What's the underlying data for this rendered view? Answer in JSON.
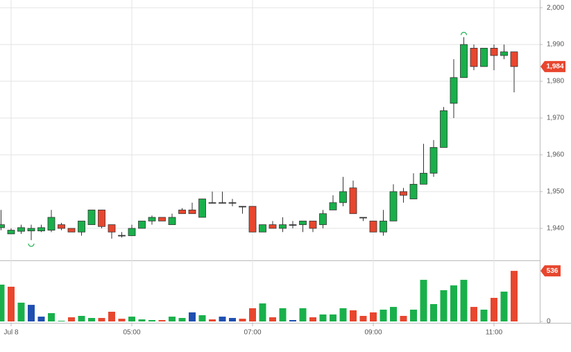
{
  "chart_data": {
    "type": "candlestick",
    "categories": [
      null,
      "Jul 8",
      null,
      null,
      null,
      null,
      null,
      null,
      null,
      null,
      null,
      null,
      null,
      "05:00",
      null,
      null,
      null,
      null,
      null,
      null,
      null,
      null,
      null,
      null,
      null,
      "07:00",
      null,
      null,
      null,
      null,
      null,
      null,
      null,
      null,
      null,
      null,
      null,
      "09:00",
      null,
      null,
      null,
      null,
      null,
      null,
      null,
      null,
      null,
      null,
      null,
      "11:00",
      null,
      null
    ],
    "open": [
      1940.2,
      1938.5,
      1939.2,
      1939.3,
      1939.3,
      1939.5,
      1941,
      1940,
      1939,
      1941,
      1945,
      1941,
      1938.1,
      1938,
      1940,
      1942,
      1943,
      1941,
      1945,
      1945,
      1943,
      1947,
      1947,
      1947,
      1946,
      1946,
      1939,
      1941,
      1940,
      1941,
      1941,
      1942,
      1941,
      1945,
      1947,
      1951,
      1943,
      1942,
      1939,
      1942,
      1950,
      1948,
      1952,
      1955,
      1962,
      1974,
      1981,
      1989,
      1984,
      1989,
      1987,
      1988
    ],
    "high": [
      1945,
      1940,
      1941,
      1941,
      1941,
      1945,
      1941.5,
      1940,
      1942,
      1945,
      1945,
      1941,
      1939,
      1941,
      1942,
      1943.5,
      1943,
      1944,
      1945.5,
      1947,
      1948,
      1950,
      1950,
      1948,
      1946,
      1946,
      1941,
      1942,
      1943,
      1942,
      1942,
      1942,
      1945,
      1949,
      1954,
      1953,
      1943,
      1942,
      1945,
      1952,
      1951,
      1955,
      1963,
      1964,
      1973,
      1986,
      1992,
      1990,
      1989,
      1990,
      1990,
      1988
    ],
    "low": [
      1939.5,
      1938.5,
      1938.5,
      1936.8,
      1939,
      1939,
      1939.5,
      1939,
      1938,
      1941,
      1940,
      1937.2,
      1937.5,
      1938,
      1940,
      1941,
      1942,
      1941,
      1944,
      1944,
      1943,
      1947,
      1947,
      1946,
      1944,
      1939,
      1939,
      1940,
      1939,
      1940,
      1939,
      1939,
      1940,
      1945,
      1946,
      1944,
      1942,
      1939,
      1938,
      1942,
      1947,
      1948,
      1952,
      1954,
      1962,
      1970,
      1981,
      1983,
      1984,
      1983,
      1986,
      1977
    ],
    "close": [
      1941,
      1939.5,
      1940.2,
      1940,
      1940.2,
      1943,
      1940,
      1939,
      1942,
      1945,
      1940.5,
      1939,
      1938.1,
      1940,
      1942,
      1943,
      1942,
      1943,
      1944,
      1944,
      1948,
      1947,
      1947,
      1947,
      1946,
      1939,
      1941,
      1940,
      1941,
      1941,
      1942,
      1940,
      1944,
      1947,
      1950,
      1944,
      1943,
      1939,
      1942,
      1950,
      1949,
      1952,
      1955,
      1962,
      1972,
      1981,
      1990,
      1984,
      1989,
      1987,
      1988,
      1984
    ],
    "volume": [
      390,
      368,
      199,
      176,
      51,
      88,
      7,
      44,
      59,
      37,
      37,
      103,
      29,
      51,
      22,
      15,
      15,
      51,
      37,
      96,
      66,
      22,
      51,
      37,
      29,
      140,
      191,
      44,
      140,
      15,
      140,
      44,
      74,
      74,
      140,
      118,
      59,
      96,
      125,
      154,
      59,
      125,
      441,
      184,
      331,
      382,
      441,
      154,
      125,
      250,
      316,
      536
    ],
    "volume_colors": [
      "#19b04b",
      "#e8462e",
      "#19b04b",
      "#1f4fb0",
      "#1f4fb0",
      "#19b04b",
      "#19b04b",
      "#e8462e",
      "#19b04b",
      "#19b04b",
      "#e8462e",
      "#e8462e",
      "#e8462e",
      "#19b04b",
      "#19b04b",
      "#19b04b",
      "#e8462e",
      "#19b04b",
      "#19b04b",
      "#1f4fb0",
      "#19b04b",
      "#e8462e",
      "#1f4fb0",
      "#1f4fb0",
      "#e8462e",
      "#e8462e",
      "#19b04b",
      "#e8462e",
      "#19b04b",
      "#1f4fb0",
      "#19b04b",
      "#e8462e",
      "#19b04b",
      "#19b04b",
      "#19b04b",
      "#e8462e",
      "#e8462e",
      "#e8462e",
      "#19b04b",
      "#19b04b",
      "#e8462e",
      "#19b04b",
      "#19b04b",
      "#19b04b",
      "#19b04b",
      "#19b04b",
      "#19b04b",
      "#e8462e",
      "#19b04b",
      "#e8462e",
      "#19b04b",
      "#e8462e"
    ],
    "up_color": "#19b04b",
    "down_color": "#e8462e",
    "flat_color": "#333333",
    "ylim": [
      1931.3,
      2002.1
    ],
    "yticks": [
      {
        "value": 2000,
        "label": "2,000"
      },
      {
        "value": 1990,
        "label": "1,990"
      },
      {
        "value": 1980,
        "label": "1,980"
      },
      {
        "value": 1970,
        "label": "1,970"
      },
      {
        "value": 1960,
        "label": "1,960"
      },
      {
        "value": 1950,
        "label": "1,950"
      },
      {
        "value": 1940,
        "label": "1,940"
      }
    ],
    "y2lim": [
      0,
      640
    ],
    "y2ticks": [
      0
    ],
    "last_price": {
      "value": 1984,
      "label": "1,984"
    },
    "grid": true
  }
}
